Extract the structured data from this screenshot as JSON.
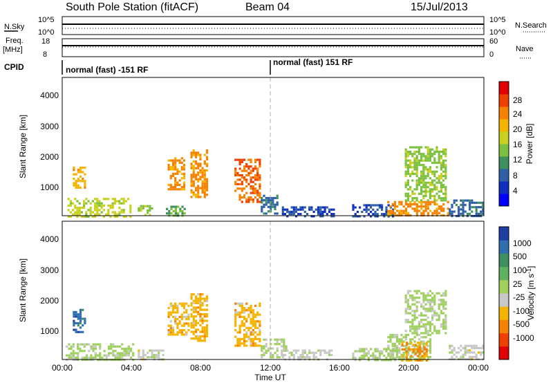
{
  "header": {
    "station": "South Pole Station (fitACF)",
    "beam": "Beam 04",
    "date": "15/Jul/2013"
  },
  "top_panels": {
    "nsky_label": "N.Sky",
    "nsky_scale_top": "10^5",
    "nsky_scale_bottom": "10^0",
    "nsearch_label": "N.Search",
    "nsearch_scale_top": "10^5",
    "nsearch_scale_bottom": "10^0",
    "freq_label_1": "Freq.",
    "freq_label_2": "[MHz]",
    "freq_ticks": [
      "18",
      "8"
    ],
    "nave_label": "Nave",
    "nave_ticks": [
      "60",
      "0"
    ],
    "cpid_label": "CPID",
    "cpid_1": "normal (fast) -151 RF",
    "cpid_2": "normal (fast) 151 RF"
  },
  "colorbars": {
    "power": {
      "label": "Power [dB]",
      "ticks": [
        "28",
        "24",
        "20",
        "16",
        "12",
        "8",
        "4"
      ],
      "colors": [
        "#e00000",
        "#f04000",
        "#f58200",
        "#f5b400",
        "#c8d020",
        "#7cc040",
        "#3f8f5f",
        "#2f5fa6",
        "#1030c0",
        "#0000ff"
      ]
    },
    "velocity": {
      "label": "Velocity [m s",
      "label_sup": "-1",
      "label_end": "]",
      "ticks": [
        "1000",
        "500",
        "100",
        "25",
        "-25",
        "-100",
        "-500",
        "-1000"
      ],
      "colors": [
        "#1e3fa0",
        "#2f6fb0",
        "#3f8f5f",
        "#5fb05f",
        "#9fd060",
        "#c8c8c8",
        "#f5b400",
        "#f58200",
        "#f04000",
        "#e00000"
      ]
    }
  },
  "axes": {
    "ylabel": "Slant Range [km]",
    "xlabel": "Time UT",
    "yticks": [
      "4000",
      "3000",
      "2000",
      "1000"
    ],
    "xticks": [
      "00:00",
      "04:00",
      "08:00",
      "12:00",
      "16:00",
      "20:00",
      "00:00"
    ]
  },
  "chart_data": [
    {
      "type": "heatmap",
      "title": "Power",
      "xlabel": "Time UT",
      "ylabel": "Slant Range [km]",
      "x_range_hours": [
        0,
        24
      ],
      "ylim_km": [
        180,
        4600
      ],
      "colorbar": {
        "label": "Power [dB]",
        "range": [
          0,
          30
        ]
      },
      "patches": [
        {
          "t0": 0.3,
          "t1": 3.9,
          "r0": 180,
          "r1": 750,
          "c": 16
        },
        {
          "t0": 0.6,
          "t1": 1.3,
          "r0": 1050,
          "r1": 1750,
          "c": 20
        },
        {
          "t0": 4.3,
          "t1": 5.3,
          "r0": 180,
          "r1": 520,
          "c": 14
        },
        {
          "t0": 5.9,
          "t1": 7.0,
          "r0": 180,
          "r1": 500,
          "c": 12
        },
        {
          "t0": 6.0,
          "t1": 7.0,
          "r0": 1000,
          "r1": 2050,
          "c": 22
        },
        {
          "t0": 7.3,
          "t1": 8.3,
          "r0": 800,
          "r1": 2300,
          "c": 22
        },
        {
          "t0": 9.8,
          "t1": 11.3,
          "r0": 600,
          "r1": 2000,
          "c": 24
        },
        {
          "t0": 11.3,
          "t1": 12.2,
          "r0": 250,
          "r1": 850,
          "c": 8
        },
        {
          "t0": 12.5,
          "t1": 15.5,
          "r0": 180,
          "r1": 480,
          "c": 6
        },
        {
          "t0": 16.5,
          "t1": 18.8,
          "r0": 180,
          "r1": 550,
          "c": 6
        },
        {
          "t0": 18.5,
          "t1": 22.0,
          "r0": 180,
          "r1": 650,
          "c": 22
        },
        {
          "t0": 19.5,
          "t1": 21.8,
          "r0": 650,
          "r1": 2400,
          "c": 14
        },
        {
          "t0": 22.0,
          "t1": 23.9,
          "r0": 180,
          "r1": 700,
          "c": 8
        }
      ]
    },
    {
      "type": "heatmap",
      "title": "Velocity",
      "xlabel": "Time UT",
      "ylabel": "Slant Range [km]",
      "x_range_hours": [
        0,
        24
      ],
      "ylim_km": [
        180,
        4600
      ],
      "colorbar": {
        "label": "Velocity [m s-1]",
        "range": [
          -1000,
          1000
        ]
      },
      "patches": [
        {
          "t0": 0.2,
          "t1": 4.0,
          "r0": 180,
          "r1": 700,
          "c": 60
        },
        {
          "t0": 0.6,
          "t1": 1.3,
          "r0": 1050,
          "r1": 1800,
          "c": 700
        },
        {
          "t0": 4.3,
          "t1": 5.8,
          "r0": 180,
          "r1": 500,
          "c": -80
        },
        {
          "t0": 6.0,
          "t1": 7.2,
          "r0": 1000,
          "r1": 2000,
          "c": -300
        },
        {
          "t0": 7.3,
          "t1": 8.3,
          "r0": 800,
          "r1": 2300,
          "c": -300
        },
        {
          "t0": 9.8,
          "t1": 11.3,
          "r0": 600,
          "r1": 2000,
          "c": -300
        },
        {
          "t0": 11.3,
          "t1": 12.8,
          "r0": 250,
          "r1": 850,
          "c": 60
        },
        {
          "t0": 12.5,
          "t1": 15.5,
          "r0": 180,
          "r1": 500,
          "c": -80
        },
        {
          "t0": 16.5,
          "t1": 19.0,
          "r0": 180,
          "r1": 550,
          "c": 40
        },
        {
          "t0": 18.5,
          "t1": 21.0,
          "r0": 180,
          "r1": 1000,
          "c": 60
        },
        {
          "t0": 19.5,
          "t1": 21.8,
          "r0": 1000,
          "r1": 2400,
          "c": 60
        },
        {
          "t0": 19.3,
          "t1": 20.8,
          "r0": 180,
          "r1": 750,
          "c": -400
        },
        {
          "t0": 22.0,
          "t1": 23.9,
          "r0": 180,
          "r1": 650,
          "c": -90
        }
      ]
    }
  ]
}
